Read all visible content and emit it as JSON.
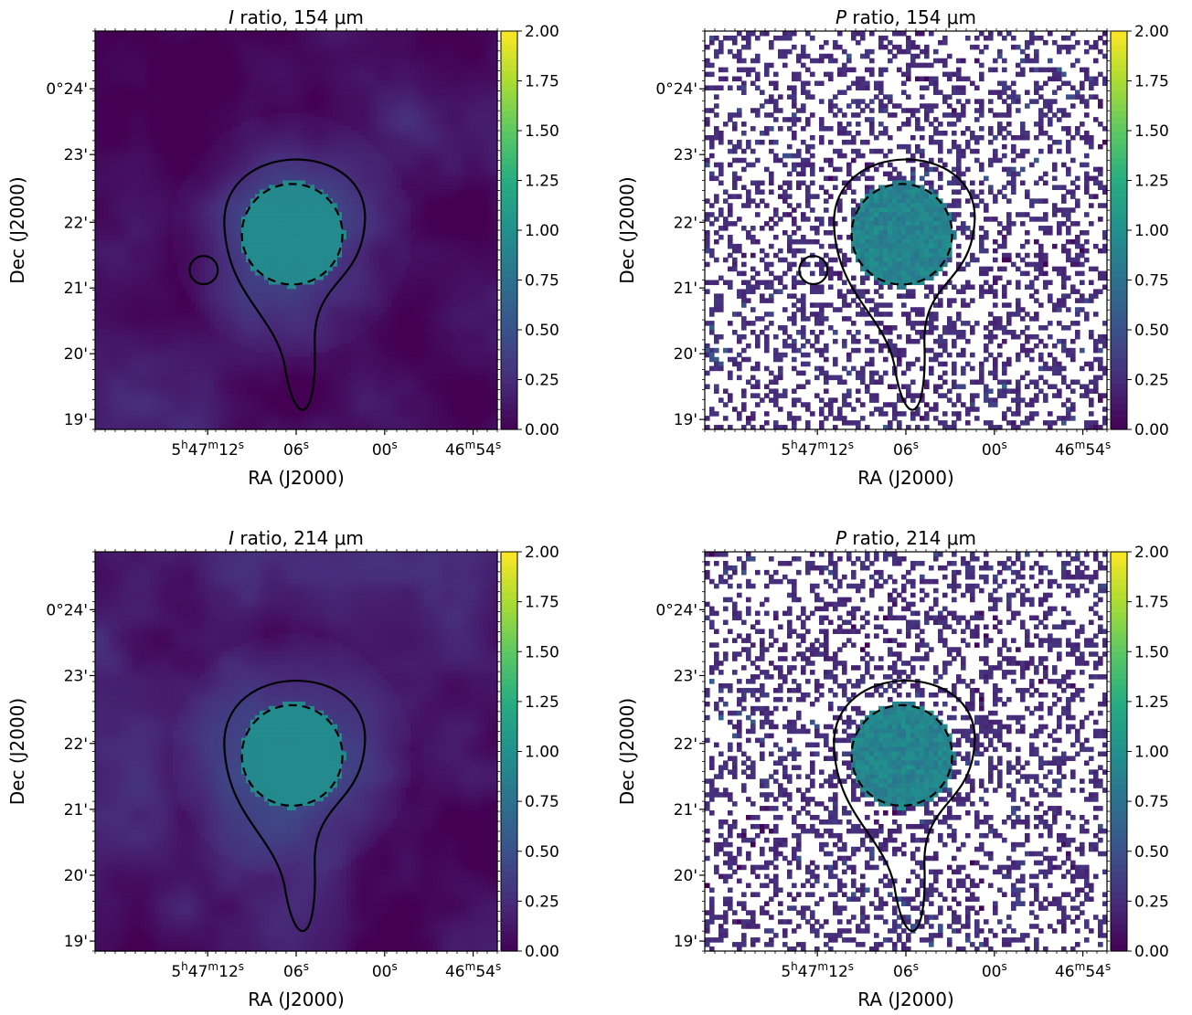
{
  "chart_data": [
    {
      "type": "heatmap",
      "title_quantity": "I",
      "title_rest": " ratio, 154 μm",
      "xlabel": "RA (J2000)",
      "ylabel": "Dec (J2000)",
      "xtick_labels": [
        {
          "main": "5",
          "parts": [
            {
              "t": "5"
            },
            {
              "t": "h",
              "sup": true
            },
            {
              "t": "47"
            },
            {
              "t": "m",
              "sup": true
            },
            {
              "t": "12"
            },
            {
              "t": "s",
              "sup": true
            }
          ]
        },
        {
          "parts": [
            {
              "t": "06"
            },
            {
              "t": "s",
              "sup": true
            }
          ]
        },
        {
          "parts": [
            {
              "t": "00"
            },
            {
              "t": "s",
              "sup": true
            }
          ]
        },
        {
          "parts": [
            {
              "t": "46"
            },
            {
              "t": "m",
              "sup": true
            },
            {
              "t": "54"
            },
            {
              "t": "s",
              "sup": true
            }
          ]
        }
      ],
      "ytick_labels": [
        "0°24'",
        "23'",
        "22'",
        "21'",
        "20'",
        "19'"
      ],
      "colorbar": {
        "min": 0.0,
        "max": 2.0,
        "ticks": [
          "2.00",
          "1.75",
          "1.50",
          "1.25",
          "1.00",
          "0.75",
          "0.50",
          "0.25",
          "0.00"
        ]
      },
      "colormap": "viridis",
      "pattern": "I154"
    },
    {
      "type": "heatmap",
      "title_quantity": "P",
      "title_rest": " ratio, 154 μm",
      "xlabel": "RA (J2000)",
      "ylabel": "Dec (J2000)",
      "xtick_labels": [
        {
          "parts": [
            {
              "t": "5"
            },
            {
              "t": "h",
              "sup": true
            },
            {
              "t": "47"
            },
            {
              "t": "m",
              "sup": true
            },
            {
              "t": "12"
            },
            {
              "t": "s",
              "sup": true
            }
          ]
        },
        {
          "parts": [
            {
              "t": "06"
            },
            {
              "t": "s",
              "sup": true
            }
          ]
        },
        {
          "parts": [
            {
              "t": "00"
            },
            {
              "t": "s",
              "sup": true
            }
          ]
        },
        {
          "parts": [
            {
              "t": "46"
            },
            {
              "t": "m",
              "sup": true
            },
            {
              "t": "54"
            },
            {
              "t": "s",
              "sup": true
            }
          ]
        }
      ],
      "ytick_labels": [
        "0°24'",
        "23'",
        "22'",
        "21'",
        "20'",
        "19'"
      ],
      "colorbar": {
        "min": 0.0,
        "max": 2.0,
        "ticks": [
          "2.00",
          "1.75",
          "1.50",
          "1.25",
          "1.00",
          "0.75",
          "0.50",
          "0.25",
          "0.00"
        ]
      },
      "colormap": "viridis",
      "pattern": "P154"
    },
    {
      "type": "heatmap",
      "title_quantity": "I",
      "title_rest": " ratio, 214 μm",
      "xlabel": "RA (J2000)",
      "ylabel": "Dec (J2000)",
      "xtick_labels": [
        {
          "parts": [
            {
              "t": "5"
            },
            {
              "t": "h",
              "sup": true
            },
            {
              "t": "47"
            },
            {
              "t": "m",
              "sup": true
            },
            {
              "t": "12"
            },
            {
              "t": "s",
              "sup": true
            }
          ]
        },
        {
          "parts": [
            {
              "t": "06"
            },
            {
              "t": "s",
              "sup": true
            }
          ]
        },
        {
          "parts": [
            {
              "t": "00"
            },
            {
              "t": "s",
              "sup": true
            }
          ]
        },
        {
          "parts": [
            {
              "t": "46"
            },
            {
              "t": "m",
              "sup": true
            },
            {
              "t": "54"
            },
            {
              "t": "s",
              "sup": true
            }
          ]
        }
      ],
      "ytick_labels": [
        "0°24'",
        "23'",
        "22'",
        "21'",
        "20'",
        "19'"
      ],
      "colorbar": {
        "min": 0.0,
        "max": 2.0,
        "ticks": [
          "2.00",
          "1.75",
          "1.50",
          "1.25",
          "1.00",
          "0.75",
          "0.50",
          "0.25",
          "0.00"
        ]
      },
      "colormap": "viridis",
      "pattern": "I214"
    },
    {
      "type": "heatmap",
      "title_quantity": "P",
      "title_rest": " ratio, 214 μm",
      "xlabel": "RA (J2000)",
      "ylabel": "Dec (J2000)",
      "xtick_labels": [
        {
          "parts": [
            {
              "t": "5"
            },
            {
              "t": "h",
              "sup": true
            },
            {
              "t": "47"
            },
            {
              "t": "m",
              "sup": true
            },
            {
              "t": "12"
            },
            {
              "t": "s",
              "sup": true
            }
          ]
        },
        {
          "parts": [
            {
              "t": "06"
            },
            {
              "t": "s",
              "sup": true
            }
          ]
        },
        {
          "parts": [
            {
              "t": "00"
            },
            {
              "t": "s",
              "sup": true
            }
          ]
        },
        {
          "parts": [
            {
              "t": "46"
            },
            {
              "t": "m",
              "sup": true
            },
            {
              "t": "54"
            },
            {
              "t": "s",
              "sup": true
            }
          ]
        }
      ],
      "ytick_labels": [
        "0°24'",
        "23'",
        "22'",
        "21'",
        "20'",
        "19'"
      ],
      "colorbar": {
        "min": 0.0,
        "max": 2.0,
        "ticks": [
          "2.00",
          "1.75",
          "1.50",
          "1.25",
          "1.00",
          "0.75",
          "0.50",
          "0.25",
          "0.00"
        ]
      },
      "colormap": "viridis",
      "pattern": "P214"
    }
  ]
}
